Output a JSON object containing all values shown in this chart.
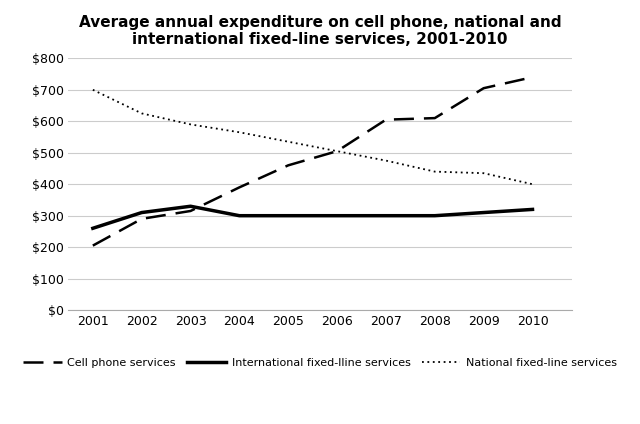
{
  "title": "Average annual expenditure on cell phone, national and\ninternational fixed-line services, 2001-2010",
  "years": [
    2001,
    2002,
    2003,
    2004,
    2005,
    2006,
    2007,
    2008,
    2009,
    2010
  ],
  "cell_phone": [
    205,
    290,
    315,
    390,
    460,
    505,
    605,
    610,
    705,
    740
  ],
  "intl_fixed": [
    260,
    310,
    330,
    300,
    300,
    300,
    300,
    300,
    310,
    320
  ],
  "natl_fixed": [
    700,
    625,
    590,
    565,
    535,
    505,
    475,
    440,
    435,
    400
  ],
  "ylim": [
    0,
    800
  ],
  "yticks": [
    0,
    100,
    200,
    300,
    400,
    500,
    600,
    700,
    800
  ],
  "legend_cell": "Cell phone services",
  "legend_intl": "International fixed-lline services",
  "legend_natl": "National fixed-line services",
  "background_color": "#ffffff",
  "grid_color": "#cccccc",
  "line_color": "#000000"
}
